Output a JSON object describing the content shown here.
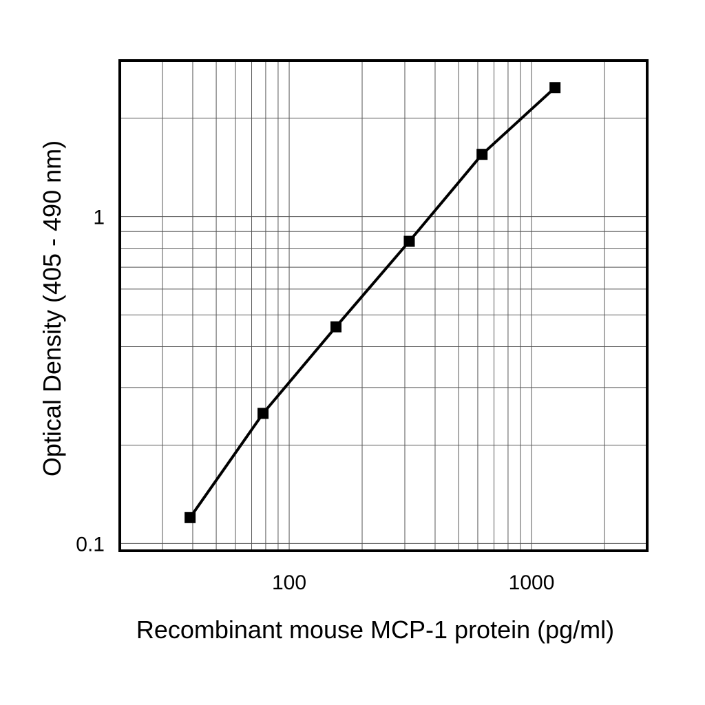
{
  "chart_data": {
    "type": "line",
    "title": "",
    "xlabel": "Recombinant mouse MCP-1 protein (pg/ml)",
    "ylabel": "Optical Density (405 - 490 nm)",
    "xscale": "log",
    "yscale": "log",
    "xlim": [
      20,
      3000
    ],
    "ylim": [
      0.095,
      3
    ],
    "grid": true,
    "legend": "none",
    "x_ticks": [
      {
        "value": 100,
        "label": "100"
      },
      {
        "value": 1000,
        "label": "1000"
      }
    ],
    "y_ticks": [
      {
        "value": 0.1,
        "label": "0.1"
      },
      {
        "value": 1,
        "label": "1"
      }
    ],
    "x_minor_grid": [
      30,
      40,
      50,
      60,
      70,
      80,
      90,
      200,
      300,
      400,
      500,
      600,
      700,
      800,
      900,
      2000
    ],
    "y_minor_grid": [
      0.2,
      0.3,
      0.4,
      0.5,
      0.6,
      0.7,
      0.8,
      0.9,
      2
    ],
    "series": [
      {
        "marker": "square",
        "color": "#000000",
        "x": [
          39,
          78,
          156,
          313,
          625,
          1250
        ],
        "y": [
          0.12,
          0.25,
          0.46,
          0.84,
          1.55,
          2.48
        ]
      }
    ]
  }
}
